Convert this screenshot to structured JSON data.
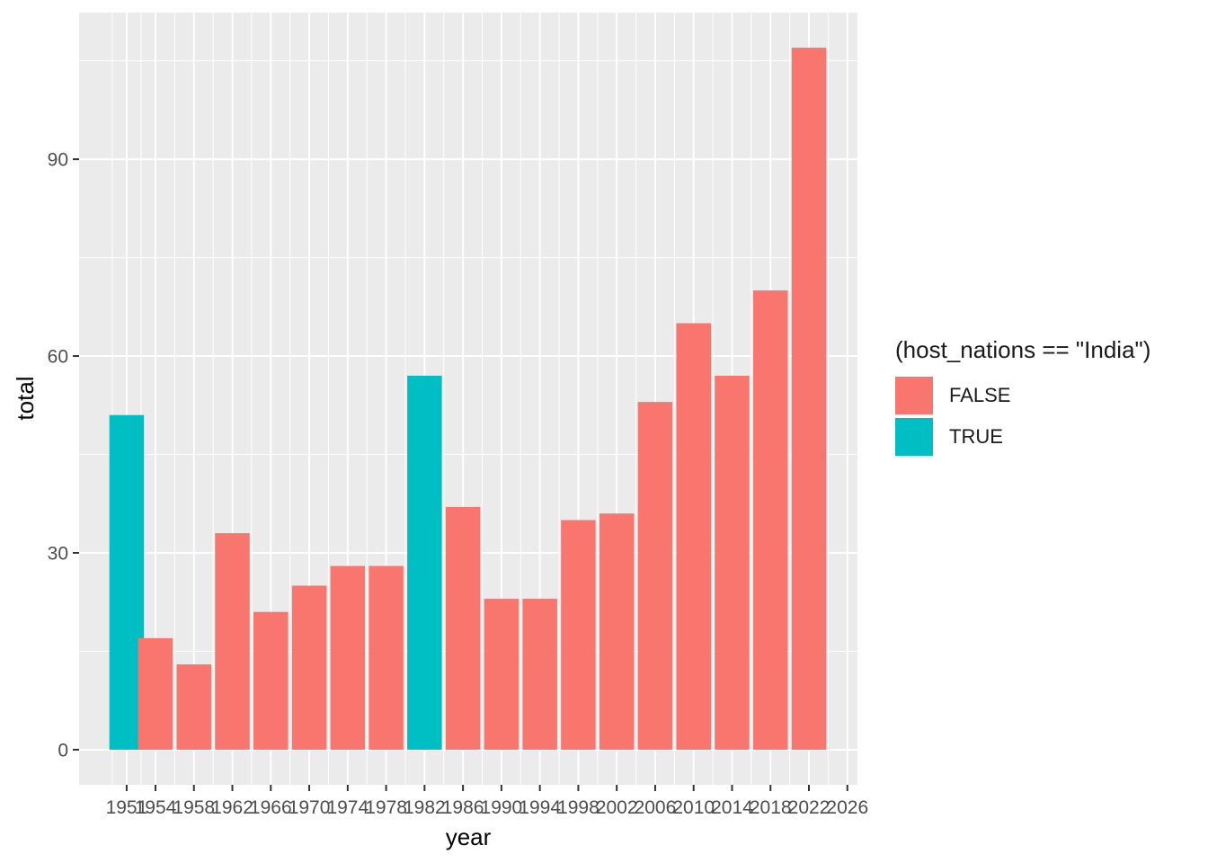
{
  "chart_data": {
    "type": "bar",
    "title": "",
    "xlabel": "year",
    "ylabel": "total",
    "x": [
      1951,
      1954,
      1958,
      1962,
      1966,
      1970,
      1974,
      1978,
      1982,
      1986,
      1990,
      1994,
      1998,
      2002,
      2006,
      2010,
      2014,
      2018,
      2022
    ],
    "values": [
      51,
      17,
      13,
      33,
      21,
      25,
      28,
      28,
      57,
      37,
      23,
      23,
      35,
      36,
      53,
      65,
      57,
      70,
      107
    ],
    "fill_group": [
      "TRUE",
      "FALSE",
      "FALSE",
      "FALSE",
      "FALSE",
      "FALSE",
      "FALSE",
      "FALSE",
      "TRUE",
      "FALSE",
      "FALSE",
      "FALSE",
      "FALSE",
      "FALSE",
      "FALSE",
      "FALSE",
      "FALSE",
      "FALSE",
      "FALSE"
    ],
    "x_ticks": [
      "1951",
      "1954",
      "1958",
      "1962",
      "1966",
      "1970",
      "1974",
      "1978",
      "1982",
      "1986",
      "1990",
      "1994",
      "1998",
      "2002",
      "2006",
      "2010",
      "2014",
      "2018",
      "2022",
      "2026"
    ],
    "y_ticks": [
      0,
      30,
      60,
      90
    ],
    "ylim": [
      -5.35,
      112.35
    ],
    "xlim": [
      1946.05,
      2027.05
    ],
    "grid": true,
    "legend": {
      "title": "(host_nations == \"India\")",
      "placement": "right",
      "entries": [
        {
          "label": "FALSE",
          "color": "#F8766D"
        },
        {
          "label": "TRUE",
          "color": "#00BFC4"
        }
      ]
    },
    "colors": {
      "FALSE": "#F8766D",
      "TRUE": "#00BFC4",
      "panel_background": "#EBEBEB",
      "gridline": "#FFFFFF",
      "axis_text": "#4D4D4D",
      "axis_title": "#000000"
    }
  }
}
